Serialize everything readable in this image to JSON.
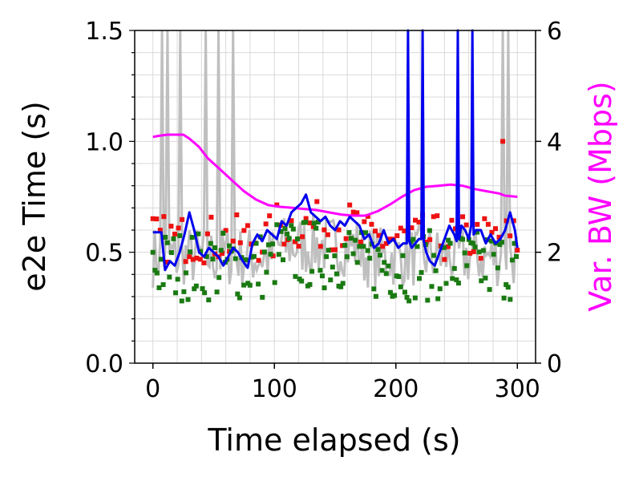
{
  "chart_data": {
    "type": "line",
    "xlabel": "Time elapsed (s)",
    "ylabel": "e2e Time (s)",
    "ylabel_right_prefix": "Var. ",
    "ylabel_right_suffix": "BW (Mbps)",
    "xlim": [
      -15,
      315
    ],
    "ylim": [
      0,
      1.5
    ],
    "ylim_right": [
      0,
      6
    ],
    "xticks": [
      0,
      100,
      200,
      300
    ],
    "xtick_labels": [
      "0",
      "100",
      "200",
      "300"
    ],
    "yticks": [
      0,
      0.5,
      1.0,
      1.5
    ],
    "ytick_labels": [
      "0.0",
      "0.5",
      "1.0",
      "1.5"
    ],
    "yticks_right": [
      0,
      2,
      4,
      6
    ],
    "ytick_right_labels": [
      "0",
      "2",
      "4",
      "6"
    ],
    "grid": true,
    "colors": {
      "gray_series": "#bfbfbf",
      "red_points": "#ee1111",
      "green_points": "#1a7a12",
      "blue_series": "#0000ee",
      "bandwidth": "#ff00ff"
    },
    "series": [
      {
        "axis": "right",
        "color": "#ff00ff",
        "x": [
          0,
          5,
          12,
          18,
          25,
          30,
          38,
          45,
          55,
          65,
          75,
          85,
          95,
          105,
          115,
          125,
          135,
          145,
          155,
          165,
          175,
          185,
          195,
          205,
          215,
          225,
          235,
          245,
          255,
          265,
          275,
          285,
          290,
          300
        ],
        "y": [
          4.08,
          4.1,
          4.12,
          4.12,
          4.12,
          4.05,
          3.9,
          3.7,
          3.5,
          3.3,
          3.1,
          2.95,
          2.85,
          2.82,
          2.8,
          2.78,
          2.76,
          2.72,
          2.68,
          2.66,
          2.66,
          2.74,
          2.86,
          3.0,
          3.12,
          3.18,
          3.2,
          3.22,
          3.2,
          3.14,
          3.1,
          3.06,
          3.02,
          3.0
        ]
      },
      {
        "color": "#0000ee",
        "x": [
          0,
          7,
          10,
          14,
          18,
          22,
          26,
          30,
          34,
          38,
          42,
          46,
          50,
          54,
          58,
          62,
          66,
          70,
          74,
          78,
          82,
          86,
          90,
          94,
          98,
          102,
          106,
          110,
          114,
          118,
          122,
          126,
          130,
          134,
          138,
          142,
          146,
          150,
          154,
          158,
          162,
          166,
          170,
          174,
          178,
          182,
          186,
          190,
          194,
          198,
          202,
          206,
          209,
          210,
          211,
          213,
          216,
          219,
          221,
          222,
          223,
          225,
          228,
          232,
          236,
          240,
          244,
          248,
          250,
          251,
          252,
          254,
          257,
          260,
          262,
          263,
          264,
          266,
          270,
          274,
          278,
          282,
          286,
          290,
          294,
          298,
          300
        ],
        "y": [
          0.59,
          0.59,
          0.42,
          0.46,
          0.44,
          0.5,
          0.58,
          0.68,
          0.6,
          0.5,
          0.48,
          0.52,
          0.5,
          0.48,
          0.44,
          0.48,
          0.52,
          0.5,
          0.46,
          0.43,
          0.54,
          0.58,
          0.55,
          0.6,
          0.58,
          0.56,
          0.64,
          0.62,
          0.68,
          0.7,
          0.72,
          0.76,
          0.68,
          0.66,
          0.64,
          0.66,
          0.62,
          0.6,
          0.64,
          0.62,
          0.66,
          0.64,
          0.62,
          0.56,
          0.58,
          0.52,
          0.54,
          0.6,
          0.54,
          0.56,
          0.52,
          0.54,
          0.54,
          1.5,
          0.55,
          0.52,
          0.54,
          0.56,
          0.56,
          1.5,
          0.55,
          0.5,
          0.46,
          0.44,
          0.5,
          0.56,
          0.62,
          0.58,
          0.55,
          1.5,
          0.56,
          0.62,
          0.6,
          0.56,
          0.62,
          1.5,
          0.58,
          0.6,
          0.6,
          0.54,
          0.58,
          0.54,
          0.56,
          0.6,
          0.68,
          0.6,
          0.52
        ]
      }
    ]
  }
}
